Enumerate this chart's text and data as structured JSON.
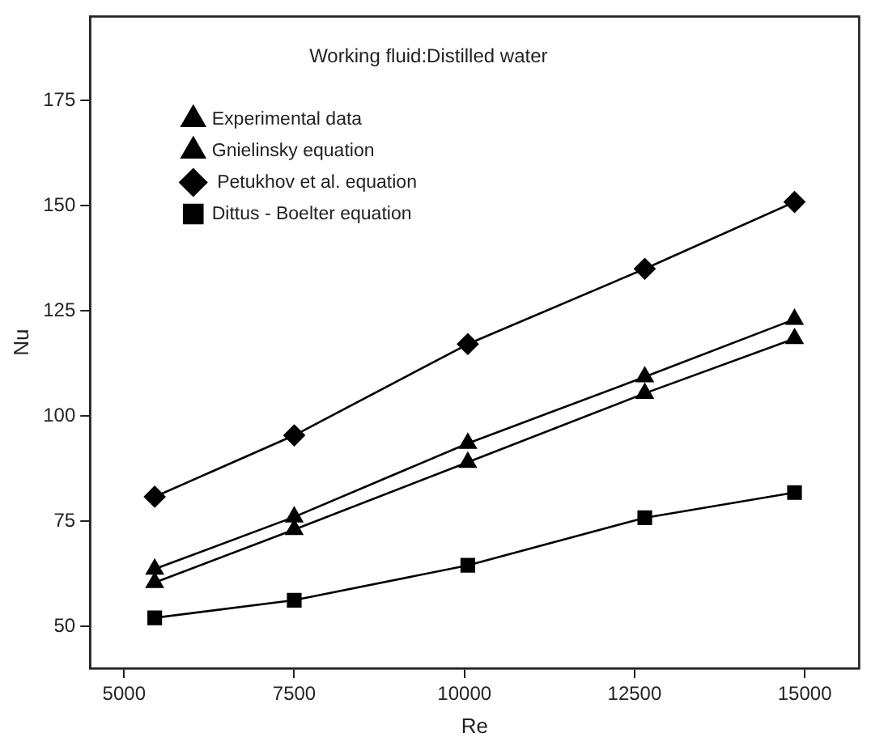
{
  "chart_data": {
    "type": "line",
    "title": "Working fluid:Distilled water",
    "xlabel": "Re",
    "ylabel": "Nu",
    "x": [
      5450,
      7500,
      10050,
      12650,
      14850
    ],
    "series": [
      {
        "name": "Experimental data",
        "color": "#000000",
        "marker": "triangle",
        "values": [
          60.4,
          73,
          89,
          105.4,
          118.4
        ]
      },
      {
        "name": "Gnielinsky equation",
        "color": "#000000",
        "marker": "triangle",
        "values": [
          63.6,
          76,
          93.5,
          109.3,
          123
        ]
      },
      {
        "name": " Petukhov et al. equation",
        "color": "#000000",
        "marker": "diamond",
        "values": [
          80.8,
          95.4,
          117.1,
          135,
          150.9
        ]
      },
      {
        "name": "Dittus - Boelter equation",
        "color": "#000000",
        "marker": "square",
        "values": [
          52,
          56.2,
          64.5,
          75.8,
          81.8
        ]
      }
    ],
    "xlim": [
      4500,
      15800
    ],
    "xticks": [
      5000,
      7500,
      10000,
      12500,
      15000
    ],
    "ylim": [
      40,
      195
    ],
    "yticks": [
      50,
      75,
      100,
      125,
      150,
      175
    ],
    "grid": false,
    "legend": "top left",
    "line_style": "solid"
  }
}
